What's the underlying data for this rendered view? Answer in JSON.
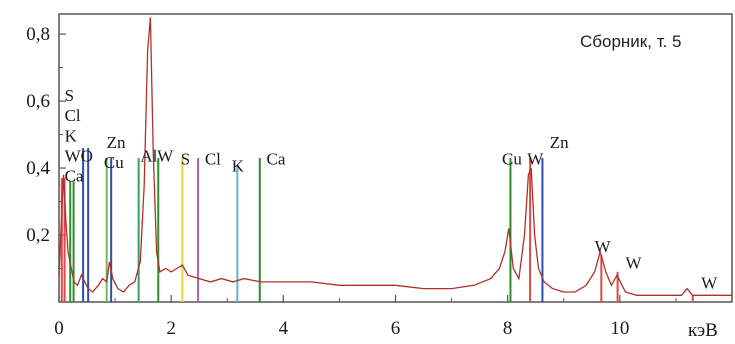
{
  "chart_data": {
    "type": "line",
    "title": "",
    "xlabel": "",
    "ylabel": "",
    "annotation": "Сборник, т. 5",
    "x_unit_label": "кэВ",
    "xlim": [
      0,
      12
    ],
    "ylim": [
      0,
      0.86
    ],
    "x_ticks": [
      0,
      2,
      4,
      6,
      8,
      10
    ],
    "x_tick_labels": [
      "0",
      "2",
      "4",
      "6",
      "8",
      "10"
    ],
    "y_ticks": [
      0.2,
      0.4,
      0.6,
      0.8
    ],
    "y_tick_labels": [
      "0,2",
      "0,4",
      "0,6",
      "0,8"
    ],
    "grid": false,
    "colors": {
      "spectrum": "#b0302a",
      "markers_note": "element marker line colors listed per marker"
    },
    "spectrum": {
      "x": [
        0.0,
        0.08,
        0.12,
        0.16,
        0.22,
        0.27,
        0.33,
        0.4,
        0.46,
        0.52,
        0.6,
        0.7,
        0.78,
        0.85,
        0.9,
        0.96,
        1.05,
        1.15,
        1.25,
        1.35,
        1.45,
        1.52,
        1.58,
        1.63,
        1.68,
        1.74,
        1.8,
        1.9,
        2.0,
        2.1,
        2.2,
        2.3,
        2.5,
        2.7,
        2.9,
        3.1,
        3.3,
        3.6,
        4.0,
        4.5,
        5.0,
        5.5,
        6.0,
        6.5,
        7.0,
        7.4,
        7.7,
        7.85,
        7.95,
        8.02,
        8.1,
        8.2,
        8.3,
        8.37,
        8.42,
        8.48,
        8.55,
        8.65,
        8.8,
        9.0,
        9.2,
        9.4,
        9.55,
        9.65,
        9.75,
        9.85,
        9.95,
        10.1,
        10.3,
        10.6,
        10.9,
        11.1,
        11.2,
        11.3,
        11.5,
        11.8,
        12.0
      ],
      "y": [
        0.08,
        0.38,
        0.25,
        0.15,
        0.1,
        0.06,
        0.05,
        0.08,
        0.06,
        0.04,
        0.03,
        0.05,
        0.07,
        0.06,
        0.12,
        0.07,
        0.04,
        0.03,
        0.05,
        0.06,
        0.12,
        0.35,
        0.75,
        0.85,
        0.45,
        0.15,
        0.09,
        0.1,
        0.09,
        0.1,
        0.11,
        0.08,
        0.07,
        0.06,
        0.07,
        0.06,
        0.07,
        0.06,
        0.06,
        0.06,
        0.05,
        0.05,
        0.05,
        0.04,
        0.04,
        0.05,
        0.07,
        0.1,
        0.15,
        0.22,
        0.1,
        0.07,
        0.2,
        0.38,
        0.4,
        0.2,
        0.1,
        0.06,
        0.04,
        0.03,
        0.03,
        0.05,
        0.09,
        0.15,
        0.09,
        0.05,
        0.08,
        0.03,
        0.02,
        0.02,
        0.02,
        0.02,
        0.04,
        0.02,
        0.02,
        0.02,
        0.02
      ]
    },
    "markers": [
      {
        "x": 0.05,
        "y": 0.37,
        "color": "#e24848"
      },
      {
        "x": 0.1,
        "y": 0.37,
        "color": "#e24848"
      },
      {
        "x": 0.2,
        "y": 0.36,
        "color": "#2c8f2c"
      },
      {
        "x": 0.26,
        "y": 0.36,
        "color": "#2c8f2c"
      },
      {
        "x": 0.43,
        "y": 0.46,
        "color": "#2a4fb0"
      },
      {
        "x": 0.52,
        "y": 0.46,
        "color": "#2a4fb0"
      },
      {
        "x": 0.85,
        "y": 0.43,
        "color": "#7ab84a"
      },
      {
        "x": 0.93,
        "y": 0.43,
        "color": "#2a4fb0"
      },
      {
        "x": 1.42,
        "y": 0.43,
        "color": "#35a060"
      },
      {
        "x": 1.77,
        "y": 0.43,
        "color": "#2c8f2c"
      },
      {
        "x": 2.2,
        "y": 0.43,
        "color": "#e8d430"
      },
      {
        "x": 2.48,
        "y": 0.43,
        "color": "#b060b0"
      },
      {
        "x": 3.18,
        "y": 0.41,
        "color": "#6aaed8"
      },
      {
        "x": 3.58,
        "y": 0.43,
        "color": "#2c8f2c"
      },
      {
        "x": 8.05,
        "y": 0.43,
        "color": "#2c8f2c"
      },
      {
        "x": 8.4,
        "y": 0.43,
        "color": "#e24848"
      },
      {
        "x": 8.62,
        "y": 0.43,
        "color": "#2a4fb0"
      },
      {
        "x": 9.67,
        "y": 0.14,
        "color": "#e24848"
      },
      {
        "x": 9.96,
        "y": 0.09,
        "color": "#e24848"
      },
      {
        "x": 11.3,
        "y": 0.02,
        "color": "#e24848"
      }
    ],
    "element_labels": [
      {
        "text": "S",
        "x": 0.1,
        "y": 0.6
      },
      {
        "text": "Cl",
        "x": 0.1,
        "y": 0.54
      },
      {
        "text": "K",
        "x": 0.1,
        "y": 0.48
      },
      {
        "text": "WO",
        "x": 0.1,
        "y": 0.42
      },
      {
        "text": "Ca",
        "x": 0.1,
        "y": 0.36
      },
      {
        "text": "Zn",
        "x": 0.85,
        "y": 0.46
      },
      {
        "text": "Cu",
        "x": 0.8,
        "y": 0.4
      },
      {
        "text": "Al",
        "x": 1.45,
        "y": 0.42
      },
      {
        "text": "W",
        "x": 1.75,
        "y": 0.42
      },
      {
        "text": "S",
        "x": 2.17,
        "y": 0.41
      },
      {
        "text": "Cl",
        "x": 2.6,
        "y": 0.41
      },
      {
        "text": "K",
        "x": 3.08,
        "y": 0.39
      },
      {
        "text": "Ca",
        "x": 3.7,
        "y": 0.41
      },
      {
        "text": "Cu",
        "x": 7.9,
        "y": 0.41
      },
      {
        "text": "W",
        "x": 8.35,
        "y": 0.41
      },
      {
        "text": "Zn",
        "x": 8.75,
        "y": 0.46
      },
      {
        "text": "W",
        "x": 9.55,
        "y": 0.15
      },
      {
        "text": "W",
        "x": 10.1,
        "y": 0.1
      },
      {
        "text": "W",
        "x": 11.45,
        "y": 0.04
      }
    ]
  }
}
